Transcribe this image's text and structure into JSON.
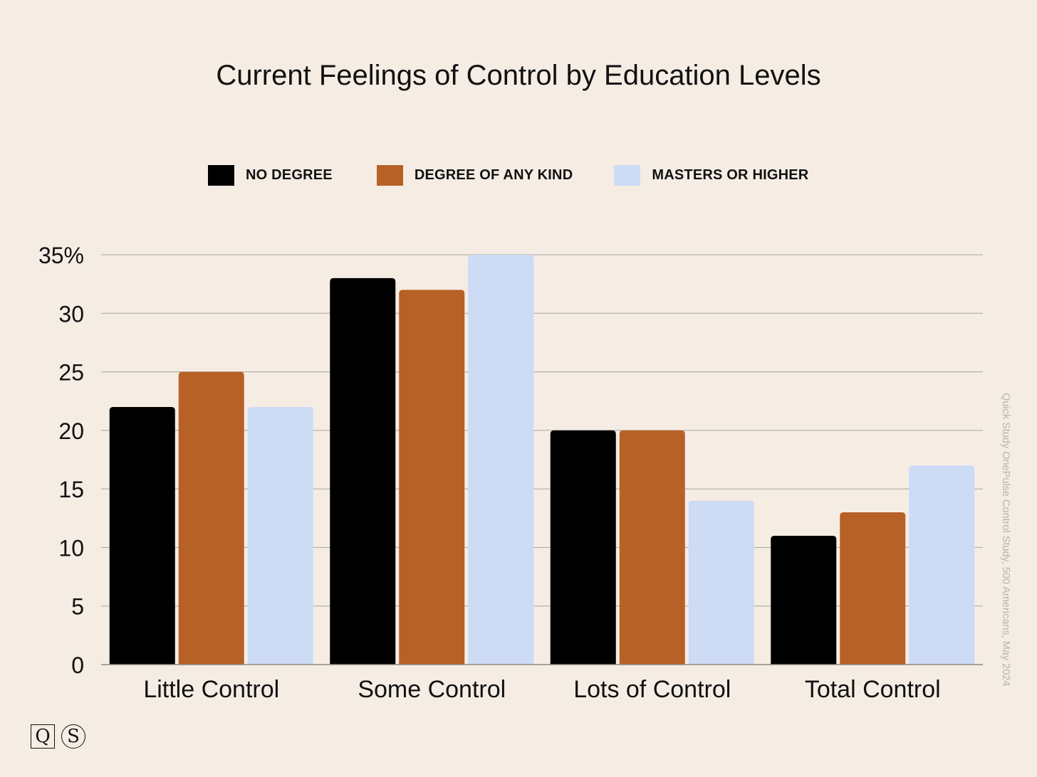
{
  "title": "Current Feelings of Control by Education Levels",
  "source_note": "Quick Study OnePulse Control Study, 500 Americans, May 2024",
  "logo": {
    "q": "Q",
    "s": "S"
  },
  "colors": {
    "background": "#f5ede4",
    "no_degree": "#000000",
    "degree_any": "#b86126",
    "masters": "#cddbf5",
    "gridline": "#a9a39b"
  },
  "legend": [
    {
      "label": "NO DEGREE",
      "color": "#000000"
    },
    {
      "label": "DEGREE OF ANY KIND",
      "color": "#b86126"
    },
    {
      "label": "MASTERS OR HIGHER",
      "color": "#cddbf5"
    }
  ],
  "chart_data": {
    "type": "bar",
    "title": "Current Feelings of Control by Education Levels",
    "categories": [
      "Little Control",
      "Some Control",
      "Lots of Control",
      "Total Control"
    ],
    "series": [
      {
        "name": "NO DEGREE",
        "color": "#000000",
        "values": [
          22,
          33,
          20,
          11
        ]
      },
      {
        "name": "DEGREE OF ANY KIND",
        "color": "#b86126",
        "values": [
          25,
          32,
          20,
          13
        ]
      },
      {
        "name": "MASTERS OR HIGHER",
        "color": "#cddbf5",
        "values": [
          22,
          35,
          14,
          17
        ]
      }
    ],
    "y_ticks": [
      "0",
      "5",
      "10",
      "15",
      "20",
      "25",
      "30",
      "35%"
    ],
    "y_tick_values": [
      0,
      5,
      10,
      15,
      20,
      25,
      30,
      35
    ],
    "ylim": [
      0,
      35
    ],
    "xlabel": "",
    "ylabel": "",
    "grid": true,
    "legend_position": "top"
  }
}
